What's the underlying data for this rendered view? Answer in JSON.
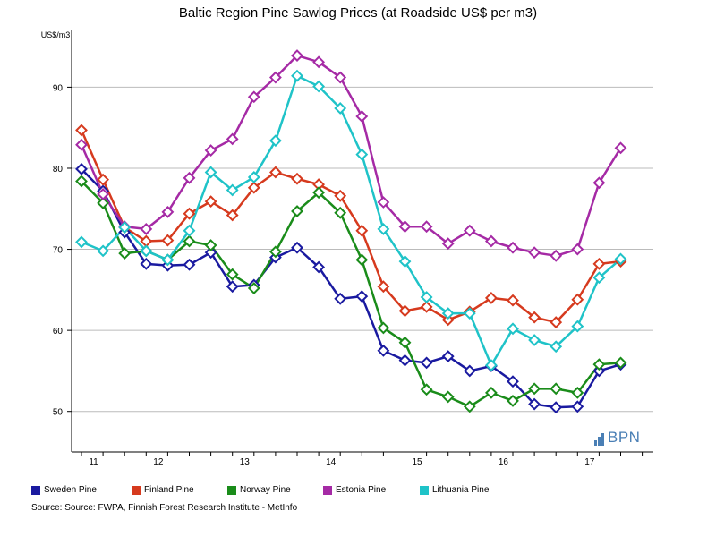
{
  "chart_data": {
    "type": "line",
    "title": "Baltic Region Pine Sawlog Prices (at Roadside US$ per m3)",
    "ylabel": "US$/m3",
    "xlabel": "",
    "ylim": [
      45,
      97
    ],
    "y_ticks": [
      50,
      60,
      70,
      80,
      90
    ],
    "x_ticks": [
      "11",
      "12",
      "13",
      "14",
      "15",
      "16",
      "17"
    ],
    "x": [
      "Q1 11",
      "Q2 11",
      "Q3 11",
      "Q4 11",
      "Q1 12",
      "Q2 12",
      "Q3 12",
      "Q4 12",
      "Q1 13",
      "Q2 13",
      "Q3 13",
      "Q4 13",
      "Q1 14",
      "Q2 14",
      "Q3 14",
      "Q4 14",
      "Q1 15",
      "Q2 15",
      "Q3 15",
      "Q4 15",
      "Q1 16",
      "Q2 16",
      "Q3 16",
      "Q4 16",
      "Q1 17",
      "Q2 17",
      "Q3 17"
    ],
    "grid": true,
    "legend_position": "bottom",
    "series": [
      {
        "name": "Sweden Pine",
        "color": "#1a1aa0",
        "values": [
          79.9,
          77.2,
          72.1,
          68.2,
          68.0,
          68.1,
          69.6,
          65.4,
          65.6,
          69.0,
          70.2,
          67.8,
          63.9,
          64.2,
          57.5,
          56.3,
          56.0,
          56.8,
          55.0,
          55.6,
          53.7,
          50.9,
          50.5,
          50.6,
          55.0,
          55.8,
          null
        ]
      },
      {
        "name": "Finland Pine",
        "color": "#d63a1e",
        "values": [
          84.7,
          78.6,
          72.7,
          71.0,
          71.1,
          74.4,
          75.9,
          74.2,
          77.6,
          79.5,
          78.7,
          78.0,
          76.6,
          72.3,
          65.4,
          62.4,
          62.9,
          61.3,
          62.3,
          64.0,
          63.7,
          61.6,
          61.0,
          63.8,
          68.2,
          68.5,
          null
        ]
      },
      {
        "name": "Norway Pine",
        "color": "#1a8c1a",
        "values": [
          78.4,
          75.7,
          69.5,
          69.8,
          68.7,
          71.0,
          70.5,
          66.9,
          65.2,
          69.7,
          74.7,
          77.0,
          74.5,
          68.7,
          60.3,
          58.5,
          52.7,
          51.8,
          50.6,
          52.3,
          51.3,
          52.8,
          52.8,
          52.3,
          55.8,
          56.0,
          null
        ]
      },
      {
        "name": "Estonia Pine",
        "color": "#a52aa5",
        "values": [
          82.9,
          76.8,
          72.8,
          72.5,
          74.6,
          78.8,
          82.2,
          83.6,
          88.8,
          91.2,
          93.9,
          93.1,
          91.2,
          86.4,
          75.8,
          72.8,
          72.8,
          70.7,
          72.3,
          71.0,
          70.2,
          69.6,
          69.2,
          70.0,
          78.2,
          82.5,
          null
        ]
      },
      {
        "name": "Lithuania Pine",
        "color": "#1fc3c8",
        "values": [
          70.9,
          69.8,
          72.7,
          69.8,
          68.7,
          72.3,
          79.5,
          77.3,
          78.9,
          83.4,
          91.4,
          90.1,
          87.4,
          81.7,
          72.5,
          68.5,
          64.1,
          62.1,
          62.1,
          55.7,
          60.2,
          58.8,
          58.0,
          60.5,
          66.5,
          68.8,
          null
        ]
      }
    ]
  },
  "source_note": "Source: Source: FWPA, Finnish Forest Research Institute - MetInfo",
  "logo": {
    "text": "BPN",
    "color": "#4a7fb5"
  },
  "colors": {
    "grid": "#bbbbbb",
    "axis": "#000000"
  }
}
